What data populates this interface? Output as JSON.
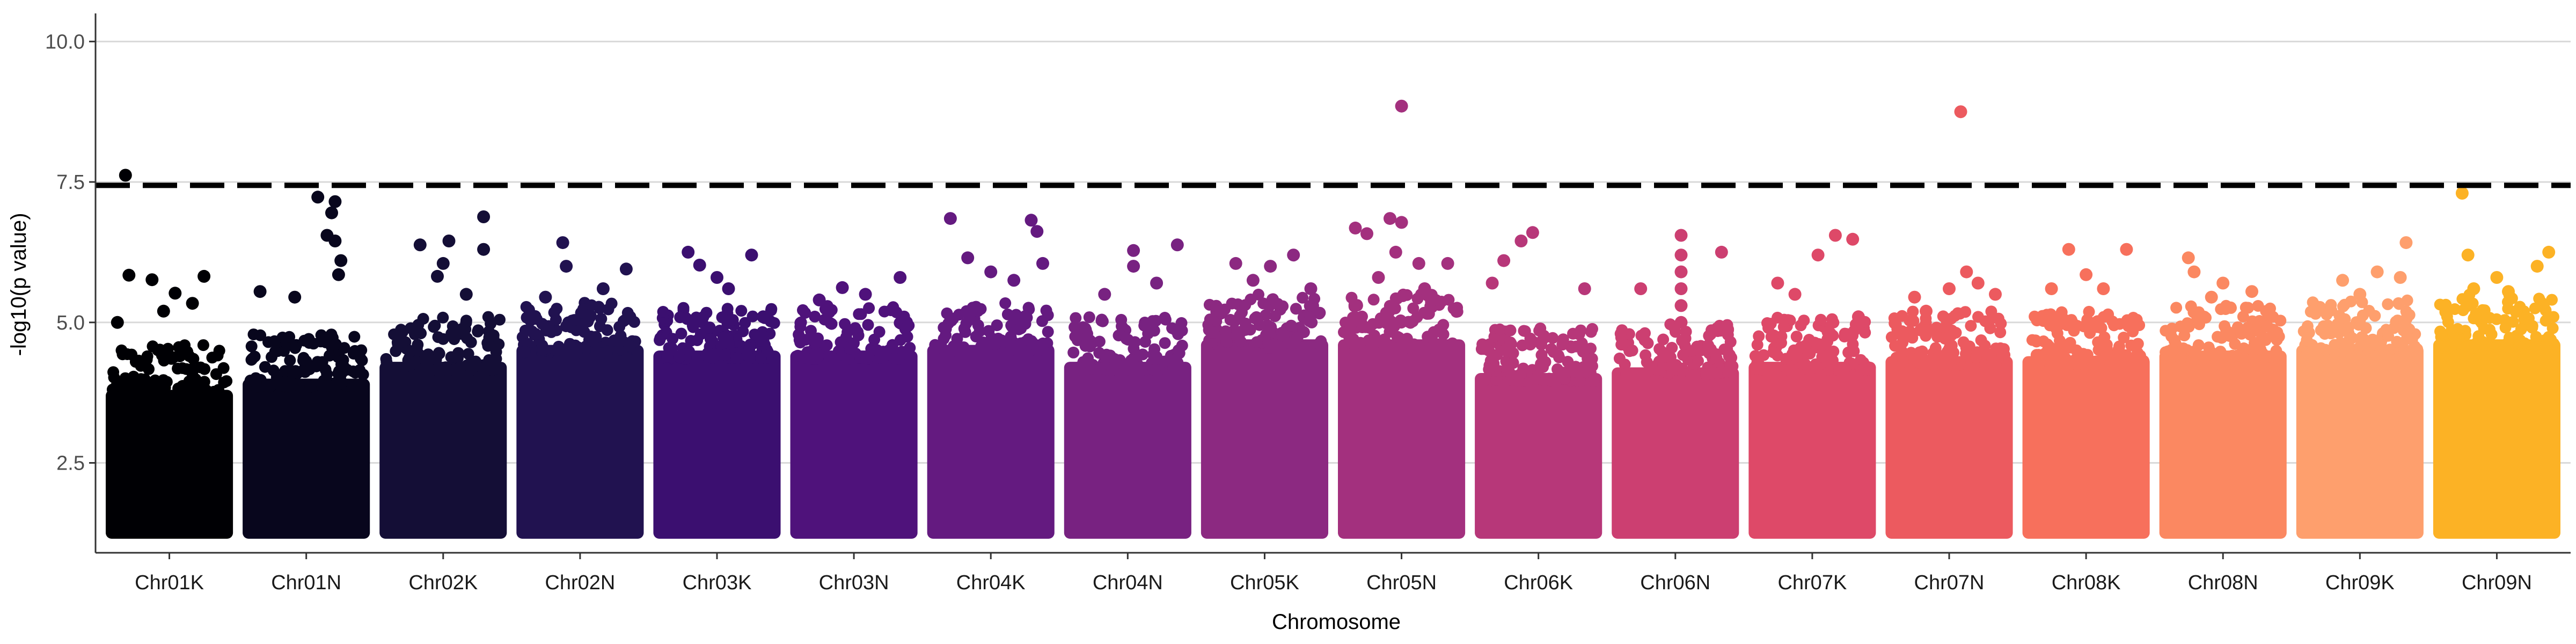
{
  "chart_data": {
    "type": "scatter",
    "subtype": "manhattan",
    "title": "",
    "xlabel": "Chromosome",
    "ylabel": "-log10(p value)",
    "ylim": [
      0.9,
      10.5
    ],
    "y_ticks": [
      2.5,
      5.0,
      7.5,
      10.0
    ],
    "y_tick_labels": [
      "2.5",
      "5.0",
      "7.5",
      "10.0"
    ],
    "grid": {
      "major_y": true,
      "major_x": false
    },
    "legend": "none",
    "threshold": {
      "value": 7.44,
      "style": "dashed",
      "color": "#000000"
    },
    "categories": [
      "Chr01K",
      "Chr01N",
      "Chr02K",
      "Chr02N",
      "Chr03K",
      "Chr03N",
      "Chr04K",
      "Chr04N",
      "Chr05K",
      "Chr05N",
      "Chr06K",
      "Chr06N",
      "Chr07K",
      "Chr07N",
      "Chr08K",
      "Chr08N",
      "Chr09K",
      "Chr09N"
    ],
    "colors": [
      "#000004",
      "#08061d",
      "#140e36",
      "#211250",
      "#3b0f70",
      "#4f127b",
      "#641a80",
      "#782281",
      "#8c2981",
      "#a3307e",
      "#b73779",
      "#cc3f71",
      "#de4968",
      "#ec5a5f",
      "#f7705c",
      "#fb8861",
      "#fe9f6d",
      "#fcb225"
    ],
    "series": [
      {
        "name": "Chr01K",
        "dense_top": 4.1,
        "top_points": [
          [
            0.12,
            7.62
          ],
          [
            0.15,
            5.84
          ],
          [
            0.35,
            5.76
          ],
          [
            0.55,
            5.52
          ],
          [
            0.7,
            5.34
          ],
          [
            0.8,
            5.82
          ],
          [
            0.05,
            5.0
          ],
          [
            0.45,
            5.2
          ]
        ]
      },
      {
        "name": "Chr01N",
        "dense_top": 4.3,
        "top_points": [
          [
            0.6,
            7.23
          ],
          [
            0.75,
            7.15
          ],
          [
            0.72,
            6.95
          ],
          [
            0.68,
            6.55
          ],
          [
            0.75,
            6.45
          ],
          [
            0.8,
            6.1
          ],
          [
            0.78,
            5.85
          ],
          [
            0.1,
            5.55
          ],
          [
            0.4,
            5.45
          ]
        ]
      },
      {
        "name": "Chr02K",
        "dense_top": 4.6,
        "top_points": [
          [
            0.85,
            6.88
          ],
          [
            0.55,
            6.45
          ],
          [
            0.3,
            6.38
          ],
          [
            0.85,
            6.3
          ],
          [
            0.5,
            6.05
          ],
          [
            0.45,
            5.82
          ],
          [
            0.7,
            5.5
          ]
        ]
      },
      {
        "name": "Chr02N",
        "dense_top": 4.9,
        "top_points": [
          [
            0.35,
            6.42
          ],
          [
            0.38,
            6.0
          ],
          [
            0.9,
            5.95
          ],
          [
            0.7,
            5.6
          ],
          [
            0.2,
            5.45
          ]
        ]
      },
      {
        "name": "Chr03K",
        "dense_top": 4.8,
        "top_points": [
          [
            0.25,
            6.25
          ],
          [
            0.35,
            6.02
          ],
          [
            0.8,
            6.2
          ],
          [
            0.5,
            5.8
          ],
          [
            0.6,
            5.6
          ],
          [
            0.9,
            5.1
          ]
        ]
      },
      {
        "name": "Chr03N",
        "dense_top": 4.8,
        "top_points": [
          [
            0.4,
            5.62
          ],
          [
            0.6,
            5.5
          ],
          [
            0.9,
            5.8
          ],
          [
            0.2,
            5.4
          ]
        ]
      },
      {
        "name": "Chr04K",
        "dense_top": 4.9,
        "top_points": [
          [
            0.15,
            6.85
          ],
          [
            0.85,
            6.82
          ],
          [
            0.9,
            6.62
          ],
          [
            0.3,
            6.15
          ],
          [
            0.5,
            5.9
          ],
          [
            0.95,
            6.05
          ],
          [
            0.7,
            5.75
          ]
        ]
      },
      {
        "name": "Chr04N",
        "dense_top": 4.6,
        "top_points": [
          [
            0.55,
            6.28
          ],
          [
            0.93,
            6.38
          ],
          [
            0.55,
            6.0
          ],
          [
            0.3,
            5.5
          ],
          [
            0.75,
            5.7
          ]
        ]
      },
      {
        "name": "Chr05K",
        "dense_top": 5.0,
        "top_points": [
          [
            0.25,
            6.05
          ],
          [
            0.55,
            6.0
          ],
          [
            0.75,
            6.2
          ],
          [
            0.4,
            5.75
          ],
          [
            0.9,
            5.6
          ]
        ]
      },
      {
        "name": "Chr05N",
        "dense_top": 5.0,
        "top_points": [
          [
            0.5,
            8.85
          ],
          [
            0.1,
            6.68
          ],
          [
            0.4,
            6.85
          ],
          [
            0.2,
            6.58
          ],
          [
            0.5,
            6.78
          ],
          [
            0.45,
            6.25
          ],
          [
            0.65,
            6.05
          ],
          [
            0.9,
            6.05
          ],
          [
            0.3,
            5.8
          ],
          [
            0.7,
            5.6
          ]
        ]
      },
      {
        "name": "Chr06K",
        "dense_top": 4.4,
        "top_points": [
          [
            0.35,
            6.45
          ],
          [
            0.45,
            6.6
          ],
          [
            0.2,
            6.1
          ],
          [
            0.1,
            5.7
          ],
          [
            0.85,
            4.8
          ],
          [
            0.9,
            5.6
          ]
        ]
      },
      {
        "name": "Chr06N",
        "dense_top": 4.5,
        "top_points": [
          [
            0.55,
            6.55
          ],
          [
            0.55,
            6.2
          ],
          [
            0.55,
            5.9
          ],
          [
            0.55,
            5.6
          ],
          [
            0.55,
            5.3
          ],
          [
            0.55,
            5.0
          ],
          [
            0.9,
            6.25
          ],
          [
            0.2,
            5.6
          ]
        ]
      },
      {
        "name": "Chr07K",
        "dense_top": 4.6,
        "top_points": [
          [
            0.7,
            6.55
          ],
          [
            0.85,
            6.48
          ],
          [
            0.2,
            5.7
          ],
          [
            0.55,
            6.2
          ],
          [
            0.35,
            5.5
          ],
          [
            0.9,
            5.1
          ]
        ]
      },
      {
        "name": "Chr07N",
        "dense_top": 4.7,
        "top_points": [
          [
            0.6,
            8.75
          ],
          [
            0.65,
            5.9
          ],
          [
            0.75,
            5.7
          ],
          [
            0.5,
            5.6
          ],
          [
            0.2,
            5.45
          ],
          [
            0.3,
            5.2
          ],
          [
            0.9,
            5.5
          ]
        ]
      },
      {
        "name": "Chr08K",
        "dense_top": 4.7,
        "top_points": [
          [
            0.85,
            6.3
          ],
          [
            0.35,
            6.3
          ],
          [
            0.5,
            5.85
          ],
          [
            0.2,
            5.6
          ],
          [
            0.65,
            5.6
          ]
        ]
      },
      {
        "name": "Chr08N",
        "dense_top": 4.8,
        "top_points": [
          [
            0.2,
            6.15
          ],
          [
            0.25,
            5.9
          ],
          [
            0.5,
            5.7
          ],
          [
            0.75,
            5.55
          ],
          [
            0.4,
            5.45
          ]
        ]
      },
      {
        "name": "Chr09K",
        "dense_top": 4.9,
        "top_points": [
          [
            0.9,
            6.42
          ],
          [
            0.65,
            5.9
          ],
          [
            0.85,
            5.8
          ],
          [
            0.35,
            5.75
          ],
          [
            0.5,
            5.5
          ]
        ]
      },
      {
        "name": "Chr09N",
        "dense_top": 5.0,
        "top_points": [
          [
            0.2,
            7.3
          ],
          [
            0.25,
            6.2
          ],
          [
            0.95,
            6.25
          ],
          [
            0.85,
            6.0
          ],
          [
            0.5,
            5.8
          ],
          [
            0.6,
            5.55
          ],
          [
            0.3,
            5.6
          ]
        ]
      }
    ]
  }
}
